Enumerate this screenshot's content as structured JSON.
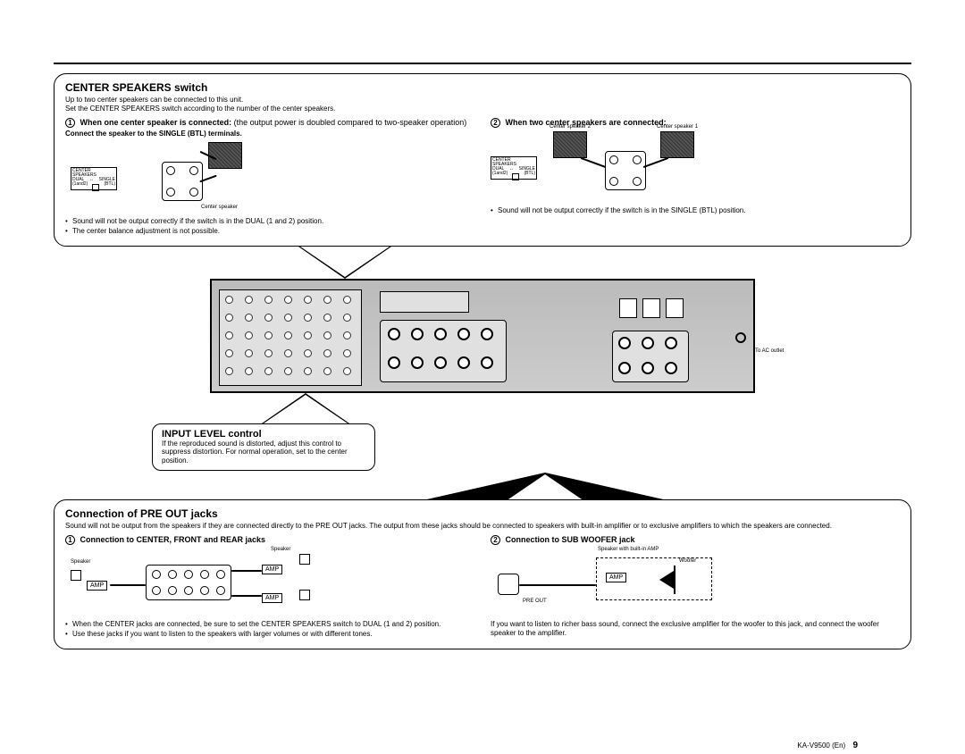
{
  "page_model": "KA-V9500 (En)",
  "page_number": "9",
  "top_section": {
    "title": "CENTER SPEAKERS switch",
    "intro_line1": "Up to two center speakers can be connected to this unit.",
    "intro_line2": "Set the CENTER SPEAKERS switch according to the number of the center speakers.",
    "col1": {
      "num": "1",
      "head_a": "When one center speaker is connected:",
      "head_b": "(the output power is doubled compared to two-speaker operation)",
      "head_c": "Connect the speaker to the SINGLE (BTL) terminals.",
      "label_center": "Center speaker",
      "label_sw": "CENTER SPEAKERS",
      "label_dual": "DUAL",
      "label_single": "SINGLE",
      "label_12": "(1and2)",
      "label_btl": "(BTL)",
      "note1": "Sound will not be output correctly if the switch is in the DUAL (1 and 2) position.",
      "note2": "The center balance adjustment is not possible."
    },
    "col2": {
      "num": "2",
      "head_a": "When two center speakers are connected:",
      "label_c2": "Center speaker 2",
      "label_c1": "Center speaker 1",
      "note1": "Sound will not be output correctly if the switch is in the SINGLE (BTL) position."
    }
  },
  "rear_panel": {
    "ac_label": "To AC outlet"
  },
  "input_level": {
    "title": "INPUT LEVEL control",
    "body": "If the reproduced sound is distorted, adjust this control to suppress distortion. For normal operation, set to the center position."
  },
  "bottom_section": {
    "title": "Connection of PRE OUT jacks",
    "intro": "Sound will not be output from the speakers if they are connected directly to the PRE OUT jacks. The output from these jacks should be connected to speakers with built-in amplifier or to exclusive amplifiers to which the speakers are connected.",
    "col1": {
      "num": "1",
      "head": "Connection to CENTER, FRONT and REAR jacks",
      "label_speaker": "Speaker",
      "label_amp": "AMP",
      "note1": "When the CENTER jacks are connected, be sure to set the CENTER SPEAKERS switch to DUAL (1 and 2) position.",
      "note2": "Use these jacks if you want to listen to the speakers with larger volumes or with different tones."
    },
    "col2": {
      "num": "2",
      "head": "Connection to SUB WOOFER jack",
      "label_spk_amp": "Speaker with built-in AMP",
      "label_amp": "AMP",
      "label_woofer": "Woofer",
      "label_preout": "PRE OUT",
      "note1": "If you want to listen to richer bass sound, connect the exclusive amplifier for the woofer to this jack, and connect the woofer speaker to the amplifier."
    }
  }
}
